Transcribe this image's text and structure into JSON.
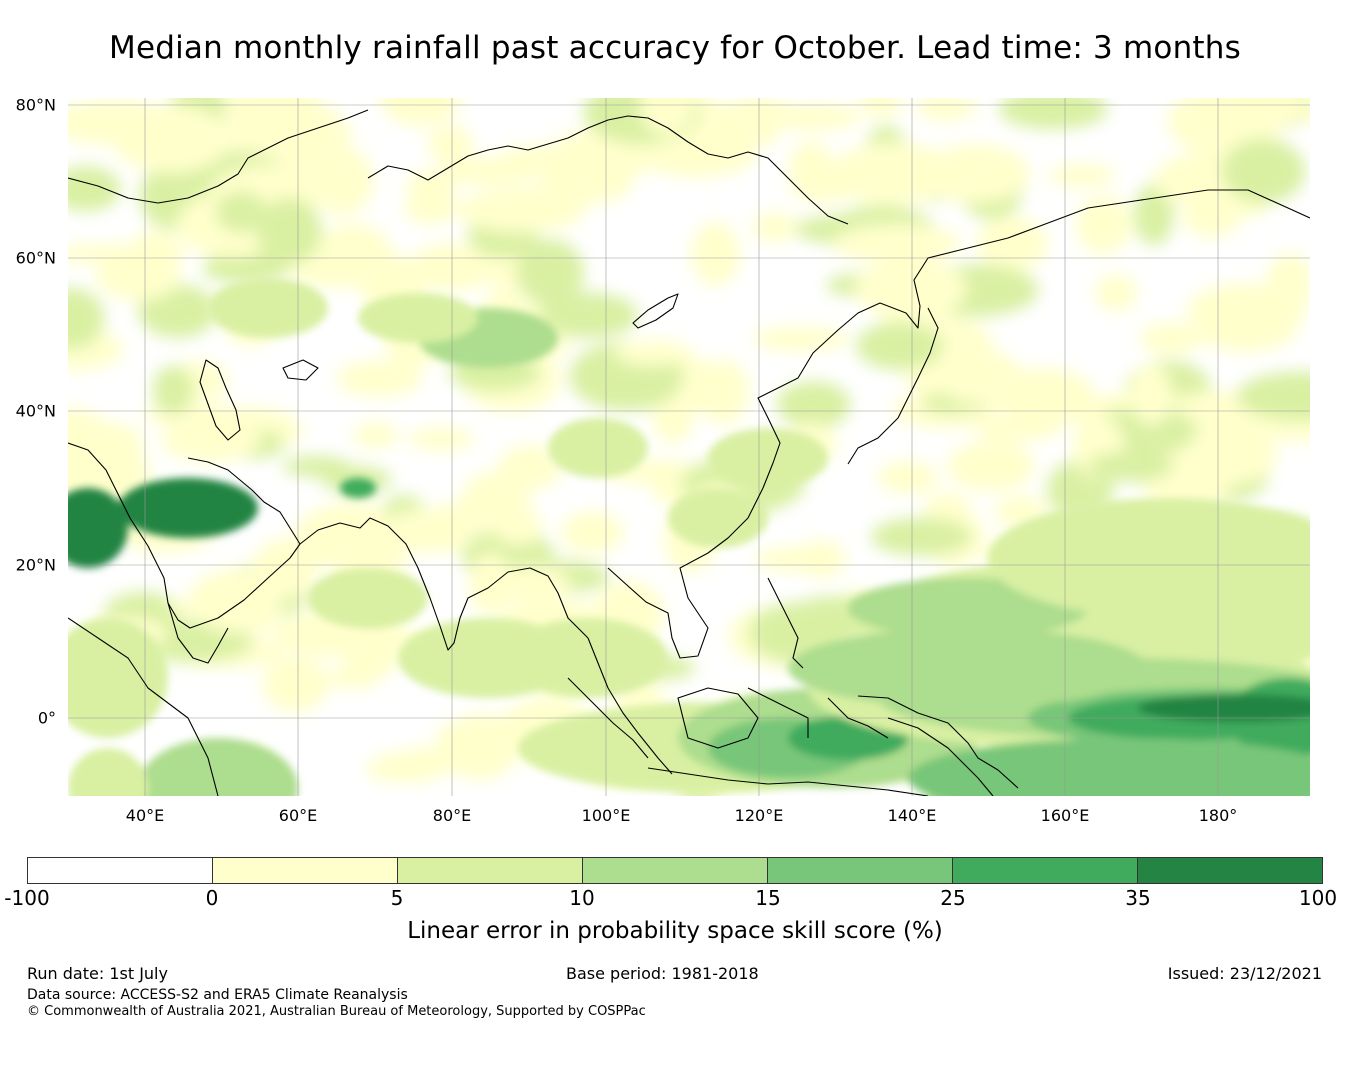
{
  "title": "Median monthly rainfall past accuracy for October. Lead time: 3 months",
  "map": {
    "lat_labels": [
      "80°N",
      "60°N",
      "40°N",
      "20°N",
      "0°"
    ],
    "lon_labels": [
      "40°E",
      "60°E",
      "80°E",
      "100°E",
      "120°E",
      "140°E",
      "160°E",
      "180°"
    ]
  },
  "colorbar": {
    "ticks": [
      "-100",
      "0",
      "5",
      "10",
      "15",
      "25",
      "35",
      "100"
    ],
    "colors": [
      "#ffffff",
      "#ffffcc",
      "#d9f0a3",
      "#addd8e",
      "#78c679",
      "#41ab5d",
      "#238443"
    ],
    "label": "Linear error in probability space skill score (%)"
  },
  "footer": {
    "run_date": "Run date: 1st July",
    "base_period": "Base period: 1981-2018",
    "issued": "Issued: 23/12/2021",
    "data_source": "Data source: ACCESS-S2 and ERA5 Climate Reanalysis",
    "copyright": "© Commonwealth of Australia 2021, Australian Bureau of Meteorology, Supported by COSPPac"
  }
}
